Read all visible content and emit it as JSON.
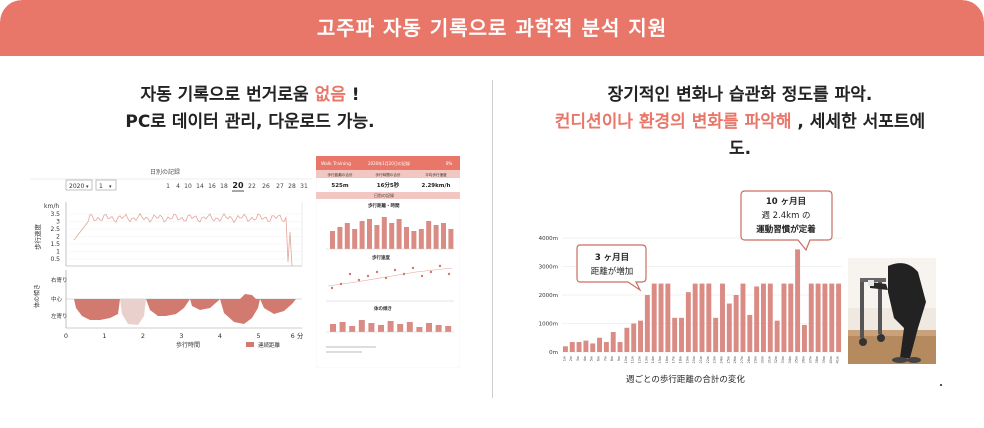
{
  "banner": {
    "title": "고주파 자동 기록으로 과학적 분석 지원"
  },
  "left": {
    "heading_line1_prefix": "자동 기록으로 번거로움 ",
    "heading_line1_accent": "없음",
    "heading_line1_suffix": " !",
    "heading_line2": "PC로 데이터 관리, 다운로드 가능.",
    "chart": {
      "date_title": "日別の記録",
      "year_select": "2020",
      "month_select": "1",
      "days": [
        "1",
        "4",
        "10",
        "14",
        "16",
        "18",
        "20",
        "22",
        "26",
        "27",
        "28",
        "31"
      ],
      "selected_day": "20",
      "speed_unit": "km/h",
      "speed_ticks": [
        "3.5",
        "3",
        "2.5",
        "2",
        "1.5",
        "1",
        "0.5"
      ],
      "speed_axis_label": "歩行速度",
      "balance_axis_label_top": "右寄り",
      "balance_axis_label_mid": "中心",
      "balance_axis_label_bottom": "左寄り",
      "balance_axis_title": "体の傾き",
      "x_ticks": [
        "0",
        "1",
        "2",
        "3",
        "4",
        "5",
        "6 分"
      ],
      "x_label": "歩行時間",
      "legend": "連続距離"
    },
    "report": {
      "header_left": "Walk Training",
      "header_mid": "2020年1月20日の記録",
      "header_right": "8%",
      "stat_labels": [
        "歩行距離の合計",
        "歩行時間の合計",
        "平均歩行速度"
      ],
      "stat_values": [
        "525m",
        "16分5秒",
        "2.29km/h"
      ],
      "section_label": "日別の記録",
      "chart_titles": [
        "歩行距離・時間",
        "歩行速度",
        "体の傾き"
      ]
    }
  },
  "right": {
    "heading_line1": "장기적인 변화나 습관화 정도를 파악.",
    "heading_line2_accent": "컨디션이나 환경의 변화를 파악해",
    "heading_line2_suffix": " , 세세한 서포트에",
    "heading_line3": "도.",
    "callout_3m_line1": "3 ヶ月目",
    "callout_3m_line2": "距離が増加",
    "callout_10m_line1": "10 ヶ月目",
    "callout_10m_line2": "週 2.4km の",
    "callout_10m_line3": "運動習慣が定着",
    "x_axis_caption": "週ごとの歩行距離の合計の変化",
    "photo_mark": "."
  },
  "chart_data": {
    "type": "bar",
    "title": "週ごとの歩行距離の合計の変化",
    "ylabel": "",
    "y_ticks": [
      "0m",
      "1000m",
      "2000m",
      "3000m",
      "4000m"
    ],
    "ylim": [
      0,
      4000
    ],
    "categories": [
      "1w",
      "2w",
      "3w",
      "4w",
      "5w",
      "6w",
      "7w",
      "8w",
      "9w",
      "10w",
      "11w",
      "12w",
      "13w",
      "14w",
      "15w",
      "16w",
      "17w",
      "18w",
      "19w",
      "20w",
      "21w",
      "22w",
      "23w",
      "24w",
      "25w",
      "26w",
      "27w",
      "28w",
      "29w",
      "30w",
      "31w",
      "32w",
      "33w",
      "34w",
      "35w",
      "36w",
      "37w",
      "38w",
      "39w",
      "40w",
      "41w"
    ],
    "values": [
      200,
      350,
      350,
      400,
      300,
      500,
      350,
      700,
      350,
      850,
      1000,
      1100,
      2000,
      2400,
      2400,
      2400,
      1200,
      1200,
      2100,
      2400,
      2400,
      2400,
      1200,
      2400,
      1700,
      2000,
      2400,
      1300,
      2300,
      2400,
      2400,
      1100,
      2400,
      2400,
      3600,
      950,
      2400,
      2400,
      2400,
      2400,
      2400
    ],
    "bar_color": "#d98b84",
    "grid": true
  }
}
